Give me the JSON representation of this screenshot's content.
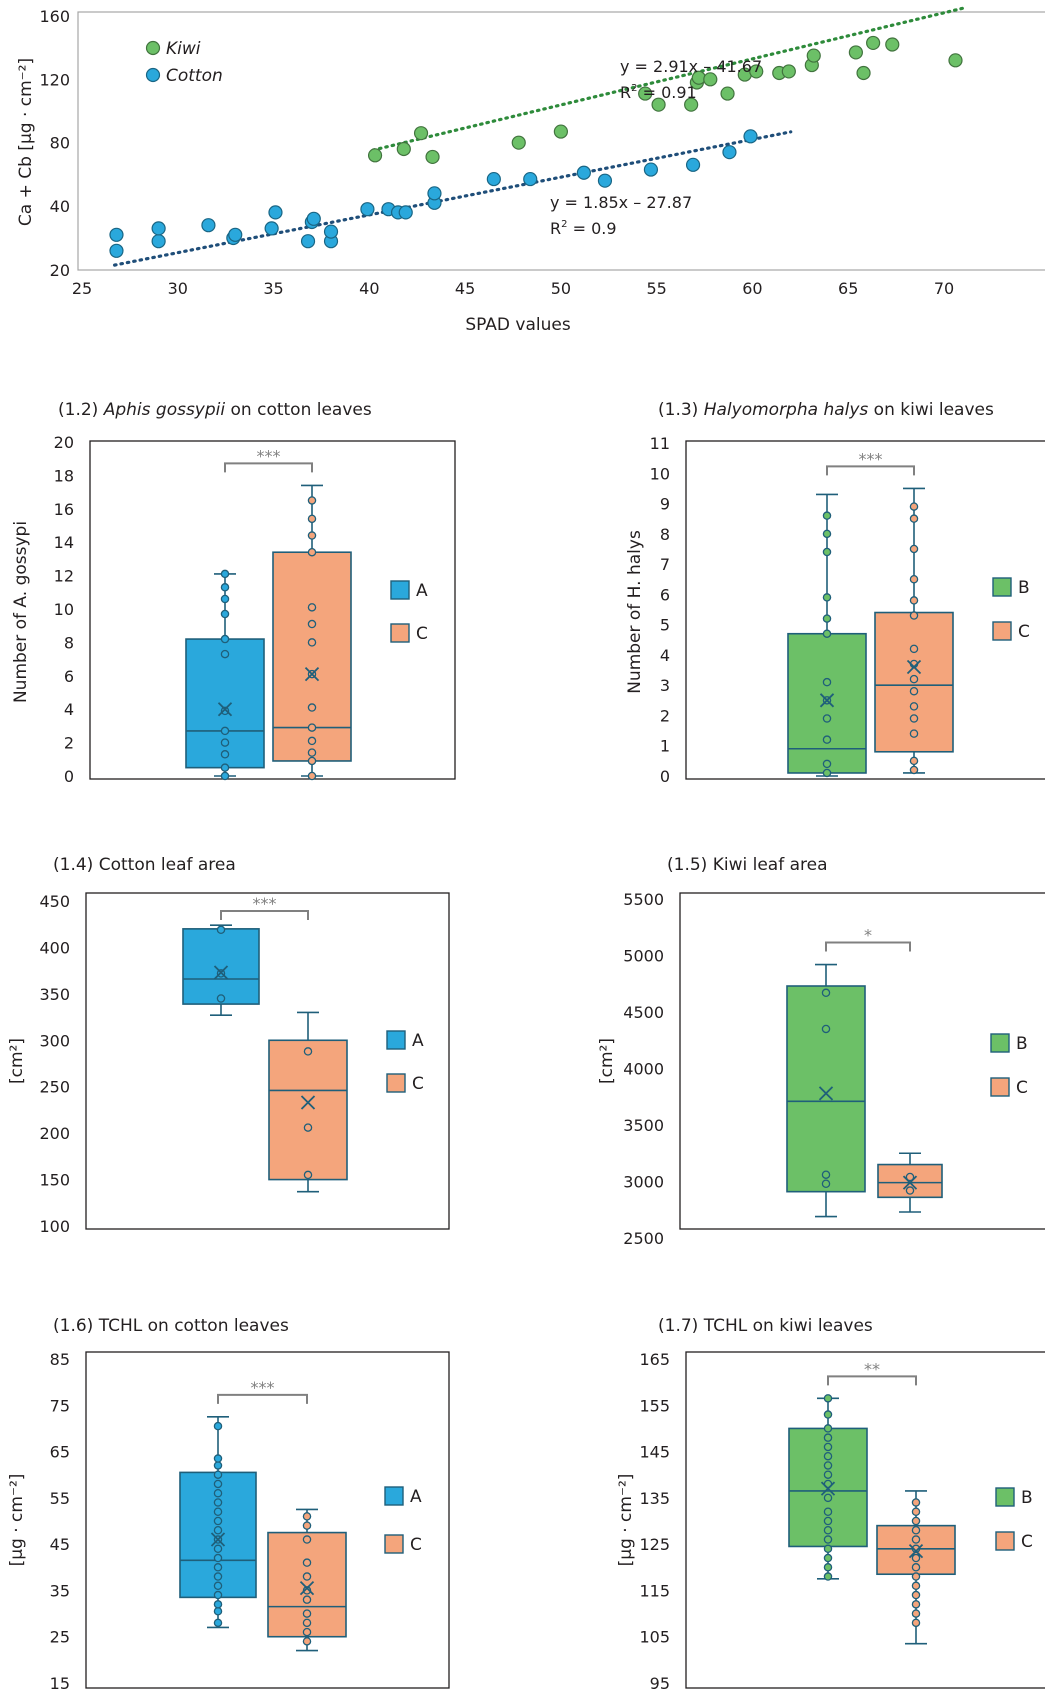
{
  "chart_data": [
    {
      "type": "scatter",
      "xlabel": "SPAD values",
      "ylabel": "Ca + Cb [µg · cm⁻²]",
      "xlim": [
        25,
        71
      ],
      "ylim": [
        20,
        160
      ],
      "xticks": [
        25,
        30,
        35,
        40,
        45,
        50,
        55,
        60,
        65,
        70
      ],
      "yticks": [
        20,
        40,
        80,
        120,
        160
      ],
      "legend_position": "top-left",
      "series": [
        {
          "name": "Kiwi",
          "color": "#6cc067",
          "trend_color": "#2e8b3b",
          "equation": "y = 2.91x – 41.67",
          "r2_label": "R",
          "r2_value": " = 0.91",
          "trend_x": [
            40.2,
            71
          ],
          "points": [
            [
              40.3,
              72
            ],
            [
              41.8,
              76
            ],
            [
              42.7,
              86
            ],
            [
              43.3,
              71
            ],
            [
              47.8,
              80
            ],
            [
              50,
              87
            ],
            [
              54.4,
              111
            ],
            [
              55.1,
              104
            ],
            [
              56.8,
              104
            ],
            [
              57.1,
              118
            ],
            [
              57.2,
              121
            ],
            [
              57.8,
              120
            ],
            [
              58.7,
              111
            ],
            [
              59.6,
              123
            ],
            [
              60.2,
              125
            ],
            [
              61.4,
              124
            ],
            [
              61.9,
              125
            ],
            [
              63.1,
              129
            ],
            [
              63.2,
              135
            ],
            [
              65.4,
              137
            ],
            [
              65.8,
              124
            ],
            [
              66.3,
              143
            ],
            [
              67.3,
              142
            ],
            [
              70.6,
              132
            ]
          ]
        },
        {
          "name": "Cotton",
          "color": "#2aa8dc",
          "trend_color": "#1f4e79",
          "equation": "y = 1.85x – 27.87",
          "r2_label": "R",
          "r2_value": " = 0.9",
          "trend_x": [
            26.7,
            62
          ],
          "points": [
            [
              26.8,
              26
            ],
            [
              26.8,
              31
            ],
            [
              29,
              29
            ],
            [
              29,
              33
            ],
            [
              31.6,
              34
            ],
            [
              32.9,
              30
            ],
            [
              33,
              31
            ],
            [
              34.9,
              33
            ],
            [
              35.1,
              38
            ],
            [
              36.8,
              29
            ],
            [
              37,
              35
            ],
            [
              37.1,
              36
            ],
            [
              38,
              29
            ],
            [
              38,
              32
            ],
            [
              39.9,
              39
            ],
            [
              41,
              39
            ],
            [
              41.5,
              38
            ],
            [
              41.9,
              38
            ],
            [
              43.4,
              42
            ],
            [
              43.4,
              48
            ],
            [
              46.5,
              57
            ],
            [
              48.4,
              57
            ],
            [
              51.2,
              61
            ],
            [
              52.3,
              56
            ],
            [
              54.7,
              63
            ],
            [
              56.9,
              66
            ],
            [
              58.8,
              74
            ],
            [
              59.9,
              84
            ]
          ]
        }
      ]
    },
    {
      "type": "box",
      "title_prefix": "(1.2) ",
      "title_italic": "Aphis gossypii",
      "title_suffix": " on cotton leaves",
      "ylabel": "Number of A. gossypi",
      "ylim": [
        0,
        20
      ],
      "yticks": [
        0,
        2,
        4,
        6,
        8,
        10,
        12,
        14,
        16,
        18,
        20
      ],
      "significance": "***",
      "boxes": [
        {
          "name": "A",
          "color": "#2aa8dc",
          "whisker_low": 0,
          "q1": 0.5,
          "median": 2.7,
          "q3": 8.2,
          "whisker_high": 12.1,
          "mean": 4.0,
          "points": [
            0,
            0.5,
            1.3,
            2,
            2.7,
            3.9,
            7.3,
            8.2,
            9.7,
            10.6,
            11.3,
            12.1
          ]
        },
        {
          "name": "C",
          "color": "#f4a57c",
          "whisker_low": 0,
          "q1": 0.9,
          "median": 2.9,
          "q3": 13.4,
          "whisker_high": 17.4,
          "mean": 6.1,
          "points": [
            0,
            0.9,
            1.4,
            2.1,
            2.9,
            4.1,
            6.1,
            8.0,
            9.1,
            10.1,
            13.4,
            14.4,
            15.4,
            16.5
          ]
        }
      ]
    },
    {
      "type": "box",
      "title_prefix": "(1.3) ",
      "title_italic": "Halyomorpha halys",
      "title_suffix": " on kiwi leaves",
      "ylabel": "Number of H. halys",
      "ylim": [
        0,
        11
      ],
      "yticks": [
        0,
        1,
        2,
        3,
        4,
        5,
        6,
        7,
        8,
        9,
        10,
        11
      ],
      "significance": "***",
      "boxes": [
        {
          "name": "B",
          "color": "#6cc067",
          "whisker_low": 0,
          "q1": 0.1,
          "median": 0.9,
          "q3": 4.7,
          "whisker_high": 9.3,
          "mean": 2.5,
          "points": [
            0.1,
            0.4,
            1.2,
            1.9,
            2.5,
            3.1,
            4.7,
            5.2,
            5.9,
            7.4,
            8.0,
            8.6
          ]
        },
        {
          "name": "C",
          "color": "#f4a57c",
          "whisker_low": 0.1,
          "q1": 0.8,
          "median": 3.0,
          "q3": 5.4,
          "whisker_high": 9.5,
          "mean": 3.6,
          "points": [
            0.2,
            0.5,
            1.4,
            1.9,
            2.3,
            2.8,
            3.2,
            3.7,
            4.2,
            5.3,
            5.8,
            6.5,
            7.5,
            8.5,
            8.9
          ]
        }
      ]
    },
    {
      "type": "box",
      "title_prefix": "(1.4) ",
      "title_italic": "",
      "title_suffix": "Cotton leaf area",
      "ylabel": "[cm²]",
      "ylim": [
        100,
        450
      ],
      "yticks": [
        100,
        150,
        200,
        250,
        300,
        350,
        400,
        450
      ],
      "significance": "***",
      "boxes": [
        {
          "name": "A",
          "color": "#2aa8dc",
          "whisker_low": 327,
          "q1": 339,
          "median": 366,
          "q3": 420,
          "whisker_high": 424,
          "mean": 373,
          "points": [
            345,
            372,
            419
          ]
        },
        {
          "name": "C",
          "color": "#f4a57c",
          "whisker_low": 137,
          "q1": 150,
          "median": 246,
          "q3": 300,
          "whisker_high": 330,
          "mean": 233,
          "points": [
            155,
            206,
            288
          ]
        }
      ]
    },
    {
      "type": "box",
      "title_prefix": "(1.5) ",
      "title_italic": "",
      "title_suffix": "Kiwi leaf area",
      "ylabel": "[cm²]",
      "ylim": [
        2500,
        5500
      ],
      "yticks": [
        2500,
        3000,
        3500,
        4000,
        4500,
        5000,
        5500
      ],
      "significance": "*",
      "boxes": [
        {
          "name": "B",
          "color": "#6cc067",
          "whisker_low": 2690,
          "q1": 2910,
          "median": 3710,
          "q3": 4730,
          "whisker_high": 4920,
          "mean": 3780,
          "points": [
            2980,
            3060,
            4350,
            4670
          ]
        },
        {
          "name": "C",
          "color": "#f4a57c",
          "whisker_low": 2730,
          "q1": 2860,
          "median": 2990,
          "q3": 3150,
          "whisker_high": 3250,
          "mean": 2990,
          "points": [
            2920,
            3040
          ]
        }
      ]
    },
    {
      "type": "box",
      "title_prefix": "(1.6) ",
      "title_italic": "",
      "title_suffix": "TCHL on cotton leaves",
      "ylabel": "[µg · cm⁻²]",
      "ylim": [
        15,
        85
      ],
      "yticks": [
        15,
        25,
        35,
        45,
        55,
        65,
        75,
        85
      ],
      "significance": "***",
      "boxes": [
        {
          "name": "A",
          "color": "#2aa8dc",
          "whisker_low": 27,
          "q1": 33.5,
          "median": 41.5,
          "q3": 60.5,
          "whisker_high": 72.5,
          "mean": 46,
          "points": [
            28,
            30.5,
            32,
            34,
            36,
            38,
            40,
            42,
            44,
            46,
            48,
            50,
            52,
            54,
            56,
            58,
            60,
            62,
            63.5,
            70.5
          ]
        },
        {
          "name": "C",
          "color": "#f4a57c",
          "whisker_low": 22,
          "q1": 25,
          "median": 31.5,
          "q3": 47.5,
          "whisker_high": 52.5,
          "mean": 35.5,
          "points": [
            24,
            26,
            28,
            30,
            33,
            35,
            38,
            41,
            46,
            49,
            51
          ]
        }
      ]
    },
    {
      "type": "box",
      "title_prefix": "(1.7) ",
      "title_italic": "",
      "title_suffix": "TCHL on kiwi leaves",
      "ylabel": "[µg · cm⁻²]",
      "ylim": [
        95,
        165
      ],
      "yticks": [
        95,
        105,
        115,
        125,
        135,
        145,
        155,
        165
      ],
      "significance": "**",
      "boxes": [
        {
          "name": "B",
          "color": "#6cc067",
          "whisker_low": 117.5,
          "q1": 124.5,
          "median": 136.5,
          "q3": 150,
          "whisker_high": 156.5,
          "mean": 137,
          "points": [
            118,
            120,
            122,
            124,
            126,
            128,
            130,
            132,
            135,
            138,
            140,
            142,
            144,
            146,
            148,
            150,
            153,
            156.5
          ]
        },
        {
          "name": "C",
          "color": "#f4a57c",
          "whisker_low": 103.5,
          "q1": 118.5,
          "median": 124,
          "q3": 129,
          "whisker_high": 136.5,
          "mean": 123.5,
          "points": [
            108,
            110,
            112,
            114,
            116,
            118,
            120,
            122,
            124,
            126,
            128,
            130,
            132,
            134
          ]
        }
      ]
    }
  ]
}
